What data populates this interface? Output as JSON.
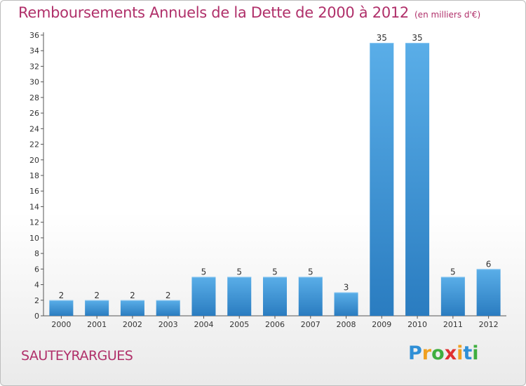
{
  "header": {
    "title": "Remboursements Annuels de la Dette de 2000 à 2012",
    "subtitle": "(en milliers d'€)"
  },
  "footer": {
    "commune": "SAUTEYRARGUES",
    "logo_letters": [
      "P",
      "r",
      "o",
      "x",
      "i",
      "t",
      "i"
    ],
    "logo_colors": [
      "#2f8fd6",
      "#f0a020",
      "#3fae3f",
      "#e03030",
      "#f0a020",
      "#2f8fd6",
      "#3fae3f"
    ]
  },
  "chart_data": {
    "type": "bar",
    "categories": [
      "2000",
      "2001",
      "2002",
      "2003",
      "2004",
      "2005",
      "2006",
      "2007",
      "2008",
      "2009",
      "2010",
      "2011",
      "2012"
    ],
    "values": [
      2,
      2,
      2,
      2,
      5,
      5,
      5,
      5,
      3,
      35,
      35,
      5,
      6
    ],
    "title": "Remboursements Annuels de la Dette de 2000 à 2012",
    "subtitle": "(en milliers d'€)",
    "xlabel": "",
    "ylabel": "",
    "ylim": [
      0,
      36
    ],
    "yticks": [
      0,
      2,
      4,
      6,
      8,
      10,
      12,
      14,
      16,
      18,
      20,
      22,
      24,
      26,
      28,
      30,
      32,
      34,
      36
    ],
    "grid": false,
    "bar_color_top": "#5aaee8",
    "bar_color_bottom": "#2a7cc0",
    "axis_color": "#555555"
  }
}
